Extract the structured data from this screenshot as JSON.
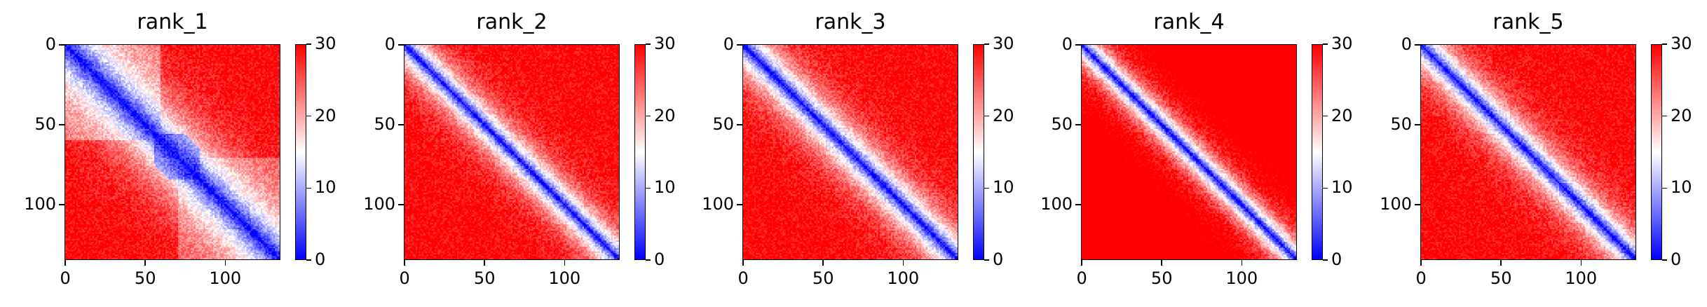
{
  "chart_data": [
    {
      "type": "heatmap",
      "title": "rank_1",
      "n": 135,
      "xticks": [
        0,
        50,
        100
      ],
      "yticks": [
        0,
        50,
        100
      ],
      "colorbar": {
        "min": 0,
        "max": 30,
        "ticks": [
          0,
          10,
          20,
          30
        ],
        "colormap": "bwr"
      }
    },
    {
      "type": "heatmap",
      "title": "rank_2",
      "n": 135,
      "xticks": [
        0,
        50,
        100
      ],
      "yticks": [
        0,
        50,
        100
      ],
      "colorbar": {
        "min": 0,
        "max": 30,
        "ticks": [
          0,
          10,
          20,
          30
        ],
        "colormap": "bwr"
      }
    },
    {
      "type": "heatmap",
      "title": "rank_3",
      "n": 135,
      "xticks": [
        0,
        50,
        100
      ],
      "yticks": [
        0,
        50,
        100
      ],
      "colorbar": {
        "min": 0,
        "max": 30,
        "ticks": [
          0,
          10,
          20,
          30
        ],
        "colormap": "bwr"
      }
    },
    {
      "type": "heatmap",
      "title": "rank_4",
      "n": 135,
      "xticks": [
        0,
        50,
        100
      ],
      "yticks": [
        0,
        50,
        100
      ],
      "colorbar": {
        "min": 0,
        "max": 30,
        "ticks": [
          0,
          10,
          20,
          30
        ],
        "colormap": "bwr"
      }
    },
    {
      "type": "heatmap",
      "title": "rank_5",
      "n": 135,
      "xticks": [
        0,
        50,
        100
      ],
      "yticks": [
        0,
        50,
        100
      ],
      "colorbar": {
        "min": 0,
        "max": 30,
        "ticks": [
          0,
          10,
          20,
          30
        ],
        "colormap": "bwr"
      }
    }
  ],
  "colors": {
    "low": "#0000ff",
    "mid": "#ffffff",
    "high": "#ff0000"
  }
}
